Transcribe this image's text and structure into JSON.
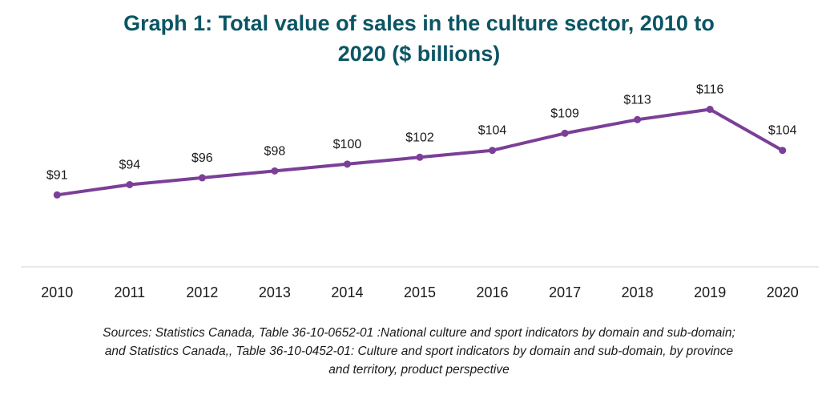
{
  "chart_data": {
    "type": "line",
    "title_line1": "Graph 1: Total value of sales in the culture sector, 2010 to",
    "title_line2": "2020 ($ billions)",
    "categories": [
      "2010",
      "2011",
      "2012",
      "2013",
      "2014",
      "2015",
      "2016",
      "2017",
      "2018",
      "2019",
      "2020"
    ],
    "series": [
      {
        "values": [
          91,
          94,
          96,
          98,
          100,
          102,
          104,
          109,
          113,
          116,
          104
        ],
        "labels": [
          "$91",
          "$94",
          "$96",
          "$98",
          "$100",
          "$102",
          "$104",
          "$109",
          "$113",
          "$116",
          "$104"
        ],
        "color": "#7b3f98"
      }
    ],
    "xlabel": "",
    "ylabel": "",
    "ylim": [
      70,
      125
    ],
    "grid": false,
    "axis_color": "#d9d9d9"
  },
  "source": {
    "line1": "Sources: Statistics Canada, Table 36-10-0652-01 :National culture and sport indicators by domain and sub-domain;",
    "line2": "and Statistics Canada,, Table 36-10-0452-01: Culture and sport indicators by domain and sub-domain, by province",
    "line3": "and territory, product perspective"
  }
}
